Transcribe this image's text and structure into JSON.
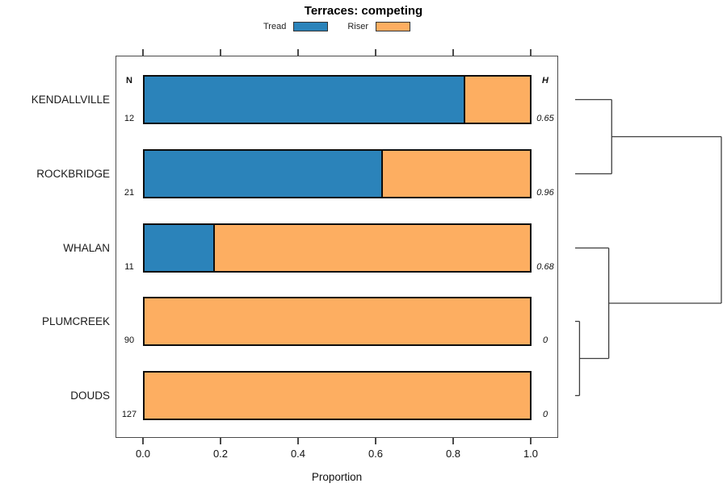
{
  "chart_data": {
    "type": "bar",
    "orientation": "horizontal",
    "stacked": true,
    "title": "Terraces: competing",
    "xlabel": "Proportion",
    "xlim": [
      0,
      1
    ],
    "x_ticks": [
      0.0,
      0.2,
      0.4,
      0.6,
      0.8,
      1.0
    ],
    "x_tick_labels": [
      "0.0",
      "0.2",
      "0.4",
      "0.6",
      "0.8",
      "1.0"
    ],
    "grid": false,
    "legend_position": "top",
    "categories": [
      "KENDALLVILLE",
      "ROCKBRIDGE",
      "WHALAN",
      "PLUMCREEK",
      "DOUDS"
    ],
    "series": [
      {
        "name": "Tread",
        "color": "#2b83ba",
        "values": [
          0.833,
          0.619,
          0.182,
          0,
          0
        ]
      },
      {
        "name": "Riser",
        "color": "#fdae61",
        "values": [
          0.167,
          0.381,
          0.818,
          1,
          1
        ]
      }
    ],
    "legend": [
      {
        "label": "Tread",
        "color": "#2b83ba"
      },
      {
        "label": "Riser",
        "color": "#fdae61"
      }
    ],
    "n_header": "N",
    "n_values": [
      "12",
      "21",
      "11",
      "90",
      "127"
    ],
    "h_header": "H",
    "h_values": [
      "0.65",
      "0.96",
      "0.68",
      "0",
      "0"
    ],
    "dendrogram": {
      "leaves": [
        "KENDALLVILLE",
        "ROCKBRIDGE",
        "WHALAN",
        "PLUMCREEK",
        "DOUDS"
      ],
      "merges": [
        {
          "id": "m1",
          "children": [
            "PLUMCREEK",
            "DOUDS"
          ],
          "height": 0.03
        },
        {
          "id": "m2",
          "children": [
            "WHALAN",
            "m1"
          ],
          "height": 0.23
        },
        {
          "id": "m3",
          "children": [
            "KENDALLVILLE",
            "ROCKBRIDGE"
          ],
          "height": 0.25
        },
        {
          "id": "m4",
          "children": [
            "m3",
            "m2"
          ],
          "height": 1.0
        }
      ]
    }
  }
}
